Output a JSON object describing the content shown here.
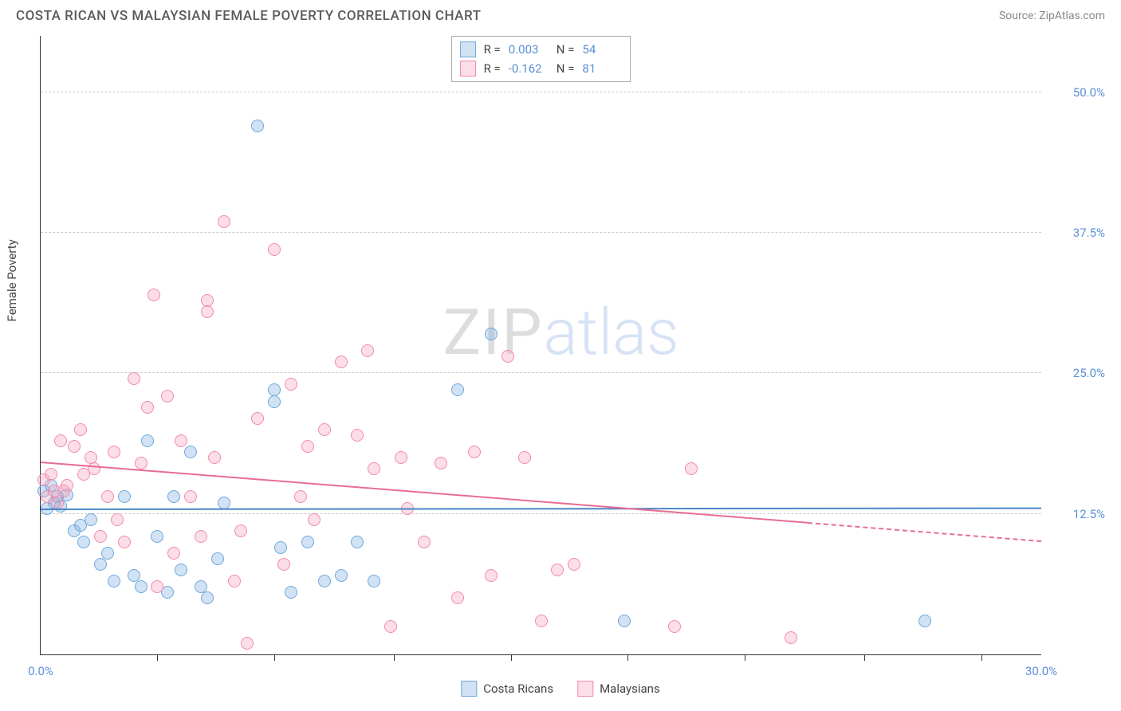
{
  "header": {
    "title": "COSTA RICAN VS MALAYSIAN FEMALE POVERTY CORRELATION CHART",
    "source": "Source: ZipAtlas.com"
  },
  "watermark": {
    "part1": "ZIP",
    "part2": "atlas"
  },
  "chart": {
    "type": "scatter",
    "ylabel": "Female Poverty",
    "xlim": [
      0,
      30
    ],
    "ylim": [
      0,
      55
    ],
    "background_color": "#ffffff",
    "grid_color": "#cccccc",
    "axis_color": "#333333",
    "tick_label_color": "#5a8fd6",
    "yticks": [
      {
        "value": 12.5,
        "label": "12.5%"
      },
      {
        "value": 25.0,
        "label": "25.0%"
      },
      {
        "value": 37.5,
        "label": "37.5%"
      },
      {
        "value": 50.0,
        "label": "50.0%"
      }
    ],
    "xticks_minor": [
      3.5,
      7.0,
      10.6,
      14.1,
      17.6,
      21.1,
      24.7,
      28.2
    ],
    "xtick_labels": [
      {
        "value": 0,
        "label": "0.0%"
      },
      {
        "value": 30,
        "label": "30.0%"
      }
    ],
    "point_radius": 8,
    "point_stroke_width": 1.5,
    "series": [
      {
        "name": "Costa Ricans",
        "fill_color": "rgba(122,172,224,0.35)",
        "stroke_color": "#6fa8dc",
        "r_value": "0.003",
        "n_value": "54",
        "regression": {
          "y_start": 12.8,
          "y_end": 12.9,
          "solid_until_x": 30,
          "color": "#4a86c7"
        },
        "points": [
          [
            0.1,
            14.5
          ],
          [
            0.2,
            13.0
          ],
          [
            0.3,
            15.0
          ],
          [
            0.4,
            13.5
          ],
          [
            0.5,
            14.0
          ],
          [
            0.6,
            13.2
          ],
          [
            0.8,
            14.2
          ],
          [
            1.0,
            11.0
          ],
          [
            1.2,
            11.5
          ],
          [
            1.3,
            10.0
          ],
          [
            1.5,
            12.0
          ],
          [
            1.8,
            8.0
          ],
          [
            2.0,
            9.0
          ],
          [
            2.2,
            6.5
          ],
          [
            2.5,
            14.0
          ],
          [
            2.8,
            7.0
          ],
          [
            3.0,
            6.0
          ],
          [
            3.2,
            19.0
          ],
          [
            3.5,
            10.5
          ],
          [
            3.8,
            5.5
          ],
          [
            4.0,
            14.0
          ],
          [
            4.2,
            7.5
          ],
          [
            4.5,
            18.0
          ],
          [
            4.8,
            6.0
          ],
          [
            5.0,
            5.0
          ],
          [
            5.3,
            8.5
          ],
          [
            5.5,
            13.5
          ],
          [
            6.5,
            47.0
          ],
          [
            7.0,
            22.5
          ],
          [
            7.0,
            23.5
          ],
          [
            7.2,
            9.5
          ],
          [
            7.5,
            5.5
          ],
          [
            8.0,
            10.0
          ],
          [
            8.5,
            6.5
          ],
          [
            9.0,
            7.0
          ],
          [
            9.5,
            10.0
          ],
          [
            10.0,
            6.5
          ],
          [
            12.5,
            23.5
          ],
          [
            13.5,
            28.5
          ],
          [
            17.5,
            3.0
          ],
          [
            26.5,
            3.0
          ]
        ]
      },
      {
        "name": "Malaysians",
        "fill_color": "rgba(244,160,185,0.35)",
        "stroke_color": "#f28ab2",
        "r_value": "-0.162",
        "n_value": "81",
        "regression": {
          "y_start": 17.0,
          "y_end": 10.0,
          "solid_until_x": 23,
          "color": "#e86d95"
        },
        "points": [
          [
            0.1,
            15.5
          ],
          [
            0.2,
            14.0
          ],
          [
            0.3,
            16.0
          ],
          [
            0.4,
            14.5
          ],
          [
            0.5,
            13.5
          ],
          [
            0.6,
            19.0
          ],
          [
            0.7,
            14.5
          ],
          [
            0.8,
            15.0
          ],
          [
            1.0,
            18.5
          ],
          [
            1.2,
            20.0
          ],
          [
            1.3,
            16.0
          ],
          [
            1.5,
            17.5
          ],
          [
            1.6,
            16.5
          ],
          [
            1.8,
            10.5
          ],
          [
            2.0,
            14.0
          ],
          [
            2.2,
            18.0
          ],
          [
            2.3,
            12.0
          ],
          [
            2.5,
            10.0
          ],
          [
            2.8,
            24.5
          ],
          [
            3.0,
            17.0
          ],
          [
            3.2,
            22.0
          ],
          [
            3.4,
            32.0
          ],
          [
            3.5,
            6.0
          ],
          [
            3.8,
            23.0
          ],
          [
            4.0,
            9.0
          ],
          [
            4.2,
            19.0
          ],
          [
            4.5,
            14.0
          ],
          [
            4.8,
            10.5
          ],
          [
            5.0,
            30.5
          ],
          [
            5.0,
            31.5
          ],
          [
            5.2,
            17.5
          ],
          [
            5.5,
            38.5
          ],
          [
            5.8,
            6.5
          ],
          [
            6.0,
            11.0
          ],
          [
            6.2,
            1.0
          ],
          [
            6.5,
            21.0
          ],
          [
            7.0,
            36.0
          ],
          [
            7.3,
            8.0
          ],
          [
            7.5,
            24.0
          ],
          [
            7.8,
            14.0
          ],
          [
            8.0,
            18.5
          ],
          [
            8.2,
            12.0
          ],
          [
            8.5,
            20.0
          ],
          [
            9.0,
            26.0
          ],
          [
            9.5,
            19.5
          ],
          [
            9.8,
            27.0
          ],
          [
            10.0,
            16.5
          ],
          [
            10.5,
            2.5
          ],
          [
            10.8,
            17.5
          ],
          [
            11.0,
            13.0
          ],
          [
            11.5,
            10.0
          ],
          [
            12.0,
            17.0
          ],
          [
            12.5,
            5.0
          ],
          [
            13.0,
            18.0
          ],
          [
            13.5,
            7.0
          ],
          [
            14.0,
            26.5
          ],
          [
            14.5,
            17.5
          ],
          [
            15.0,
            3.0
          ],
          [
            15.5,
            7.5
          ],
          [
            16.0,
            8.0
          ],
          [
            19.0,
            2.5
          ],
          [
            19.5,
            16.5
          ],
          [
            22.5,
            1.5
          ]
        ]
      }
    ]
  },
  "stats_box": {
    "r_label": "R =",
    "n_label": "N ="
  },
  "legend": {
    "series1": "Costa Ricans",
    "series2": "Malaysians"
  }
}
